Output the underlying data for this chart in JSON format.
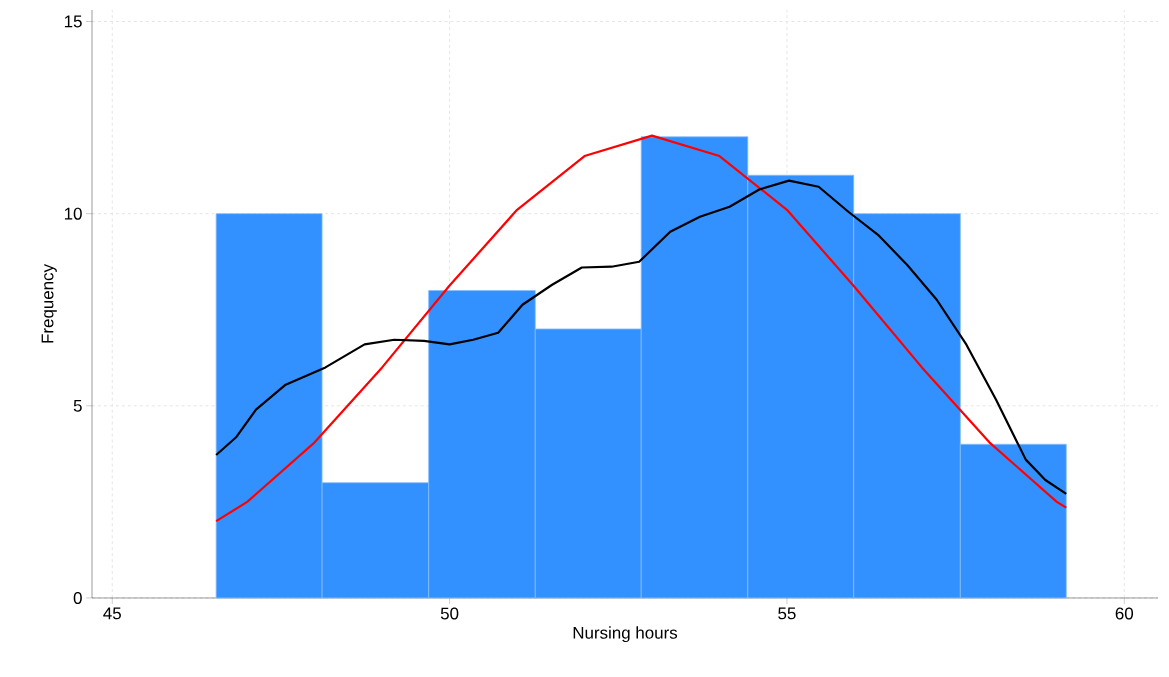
{
  "chart_data": {
    "type": "histogram",
    "xlabel": "Nursing hours",
    "ylabel": "Frequency",
    "bins": [
      46.54,
      48.11,
      49.69,
      51.27,
      52.84,
      54.42,
      55.99,
      57.57,
      59.14
    ],
    "values": [
      10,
      3,
      8,
      7,
      12,
      11,
      10,
      4
    ],
    "color": "#3390ff",
    "series": [
      {
        "type": "line",
        "color": "#ff0000",
        "x": [
          46.54,
          47,
          48,
          49,
          50,
          51,
          52,
          53,
          54,
          55,
          56,
          57,
          58,
          59,
          59.14
        ],
        "values": [
          2.0,
          2.5,
          4.05,
          6.0,
          8.13,
          10.1,
          11.5,
          12.03,
          11.5,
          10.1,
          8.1,
          6.0,
          4.05,
          2.5,
          2.35
        ]
      },
      {
        "type": "line",
        "color": "#000000",
        "x": [
          46.54,
          46.84,
          47.13,
          47.57,
          48.16,
          48.74,
          49.18,
          49.62,
          50,
          50.35,
          50.72,
          51.08,
          51.52,
          51.96,
          52.4,
          52.81,
          53.27,
          53.71,
          54.15,
          54.59,
          55.03,
          55.47,
          55.91,
          56.35,
          56.78,
          57.22,
          57.66,
          58.1,
          58.54,
          58.83,
          59.14
        ],
        "values": [
          3.72,
          4.19,
          4.9,
          5.55,
          6.0,
          6.6,
          6.72,
          6.69,
          6.6,
          6.72,
          6.9,
          7.63,
          8.15,
          8.6,
          8.62,
          8.75,
          9.53,
          9.92,
          10.18,
          10.63,
          10.86,
          10.7,
          10.05,
          9.45,
          8.67,
          7.76,
          6.59,
          5.16,
          3.6,
          3.07,
          2.71
        ]
      }
    ],
    "xlim": [
      44.7,
      60.5
    ],
    "ylim": [
      0,
      15.3
    ],
    "xticks": [
      45,
      50,
      55,
      60
    ],
    "yticks": [
      0,
      5,
      10,
      15
    ],
    "grid": true
  }
}
